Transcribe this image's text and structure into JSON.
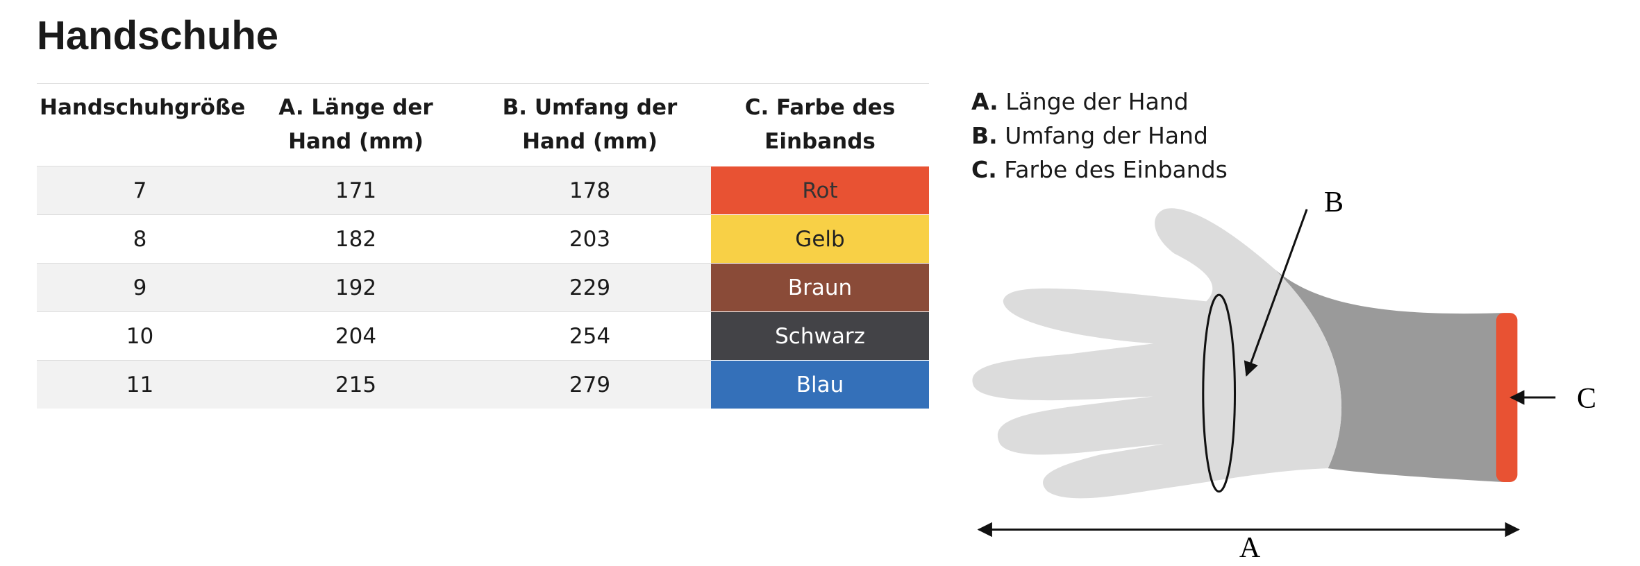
{
  "title": "Handschuhe",
  "table": {
    "headers": [
      "Handschuhgröße",
      "A. Länge der Hand (mm)",
      "B. Umfang der Hand (mm)",
      "C. Farbe des Einbands"
    ],
    "rows": [
      [
        "7",
        "171",
        "178",
        "Rot"
      ],
      [
        "8",
        "182",
        "203",
        "Gelb"
      ],
      [
        "9",
        "192",
        "229",
        "Braun"
      ],
      [
        "10",
        "204",
        "254",
        "Schwarz"
      ],
      [
        "11",
        "215",
        "279",
        "Blau"
      ]
    ],
    "band_colors": [
      "#e85233",
      "#f8d046",
      "#8a4b38",
      "#434347",
      "#3470b9"
    ]
  },
  "legend": [
    {
      "key": "A.",
      "text": "Länge der Hand"
    },
    {
      "key": "B.",
      "text": "Umfang der Hand"
    },
    {
      "key": "C.",
      "text": "Farbe des Einbands"
    }
  ],
  "diagram": {
    "labels": [
      "A",
      "B",
      "C"
    ]
  }
}
